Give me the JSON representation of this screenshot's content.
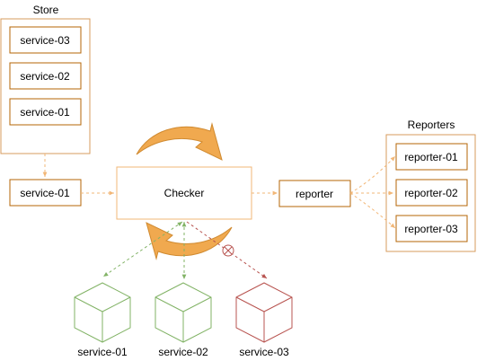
{
  "store": {
    "title": "Store",
    "items": [
      "service-03",
      "service-02",
      "service-01"
    ]
  },
  "input_service": "service-01",
  "checker": "Checker",
  "reporter": "reporter",
  "reporters": {
    "title": "Reporters",
    "items": [
      "reporter-01",
      "reporter-02",
      "reporter-03"
    ]
  },
  "services": [
    {
      "label": "service-01",
      "status": "ok"
    },
    {
      "label": "service-02",
      "status": "ok"
    },
    {
      "label": "service-03",
      "status": "failed"
    }
  ],
  "colors": {
    "orange_stroke": "#d79b5e",
    "orange_arrow": "#f0a94f",
    "green": "#82b366",
    "red": "#b85450",
    "dashed_orange": "#f2b777"
  }
}
